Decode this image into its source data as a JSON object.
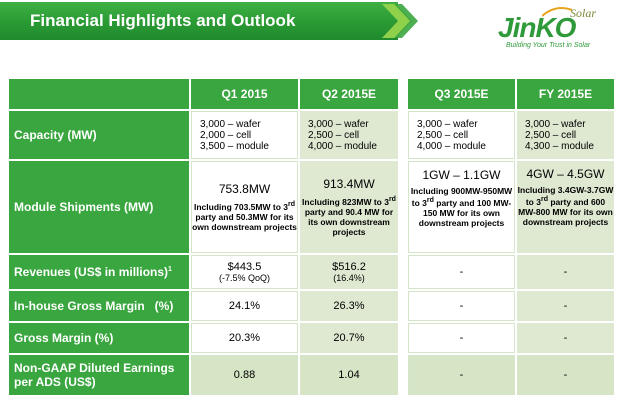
{
  "header": {
    "title": "Financial Highlights and Outlook"
  },
  "logo": {
    "brand": "JinKO",
    "solar": "Solar",
    "tagline": "Building Your Trust in Solar"
  },
  "colors": {
    "accent": "#3aa63f",
    "light_cell": "#dfe9d2",
    "highlight": "#d6e5c5"
  },
  "columns": [
    "Q1 2015",
    "Q2 2015E",
    "Q3 2015E",
    "FY 2015E"
  ],
  "rows": {
    "capacity": {
      "label": "Capacity (MW)",
      "q1": [
        "3,000 – wafer",
        "2,000 – cell",
        "3,500 – module"
      ],
      "q2": [
        "3,000 – wafer",
        "2,500 – cell",
        "4,000 – module"
      ],
      "q3": [
        "3,000 – wafer",
        "2,500 – cell",
        "4,000 – module"
      ],
      "fy": [
        "3,000 – wafer",
        "2,500 – cell",
        "4,300 – module"
      ]
    },
    "shipments": {
      "label": "Module Shipments (MW)",
      "q1_main": "753.8MW",
      "q1_note": "Including 703.5MW to 3rd party and 50.3MW for its own downstream projects",
      "q2_main": "913.4MW",
      "q2_note": "Including 823MW to 3rd party and 90.4 MW for its own downstream projects",
      "q3_main": "1GW – 1.1GW",
      "q3_note": "Including 900MW-950MW to 3rd party and 100 MW-150 MW for its own downstream projects",
      "fy_main": "4GW – 4.5GW",
      "fy_note": "Including 3.4GW-3.7GW to 3rd party and 600 MW-800 MW for its own downstream projects"
    },
    "revenues": {
      "label": "Revenues (US$ in millions)",
      "footnote": "1",
      "q1": "$443.5",
      "q1_sub": "(-7.5% QoQ)",
      "q2": "$516.2",
      "q2_sub": "(16.4%)",
      "q3": "-",
      "fy": "-"
    },
    "inhouse_gm": {
      "label": "In-house Gross Margin   (%)",
      "q1": "24.1%",
      "q2": "26.3%",
      "q3": "-",
      "fy": "-"
    },
    "gross_margin": {
      "label": "Gross Margin (%)",
      "q1": "20.3%",
      "q2": "20.7%",
      "q3": "-",
      "fy": "-"
    },
    "eps": {
      "label": "Non-GAAP Diluted Earnings per ADS (US$)",
      "q1": "0.88",
      "q2": "1.04",
      "q3": "-",
      "fy": "-"
    }
  }
}
